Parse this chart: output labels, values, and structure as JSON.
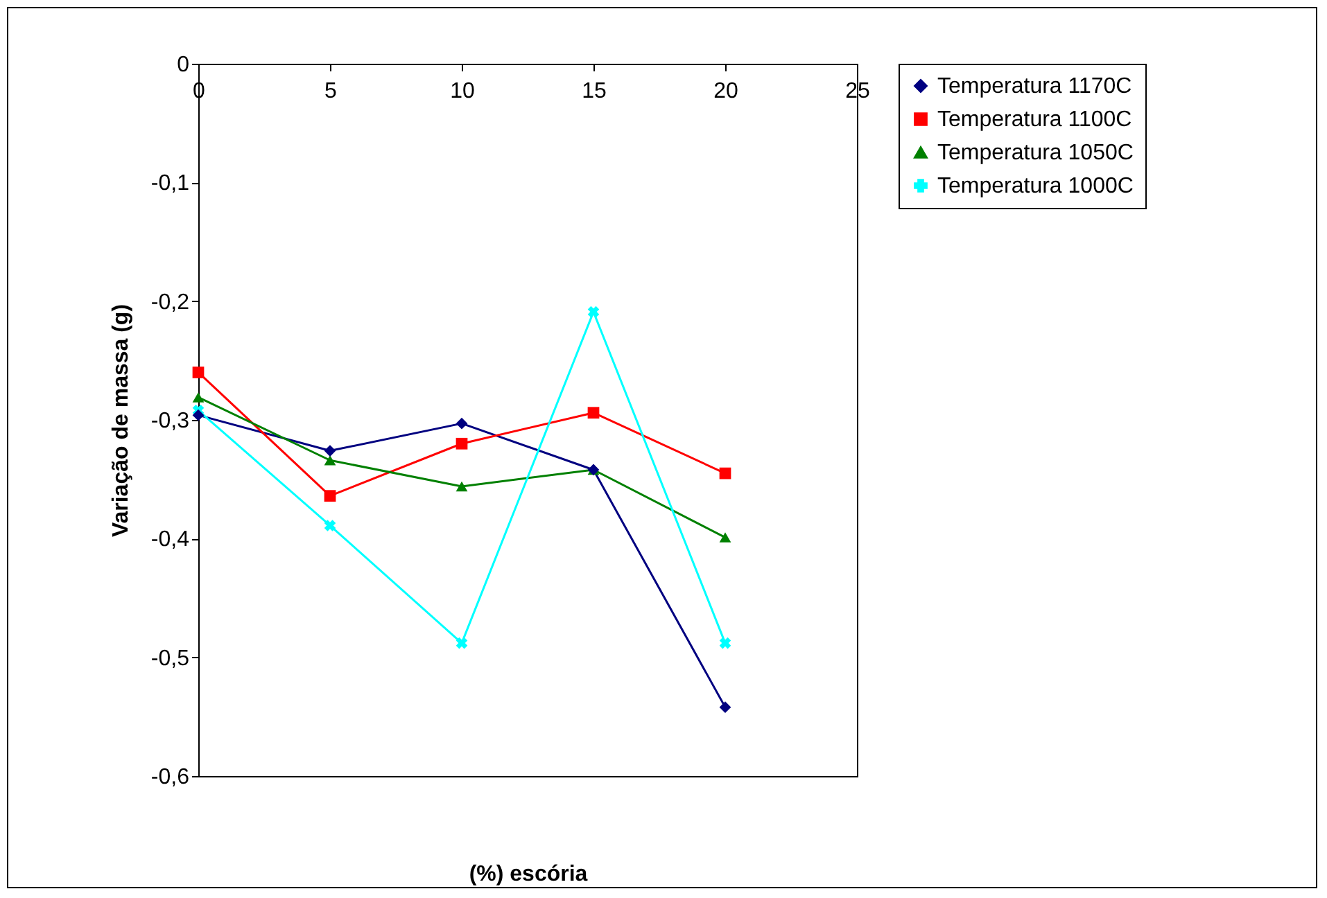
{
  "chart_data": {
    "type": "line",
    "xlabel": "(%) escória",
    "ylabel": "Variação de massa (g)",
    "x": [
      0,
      5,
      10,
      15,
      20
    ],
    "xlim": [
      0,
      25
    ],
    "xticks": [
      0,
      5,
      10,
      15,
      20,
      25
    ],
    "ylim": [
      -0.6,
      0
    ],
    "yticks": [
      {
        "value": 0,
        "label": "0"
      },
      {
        "value": -0.1,
        "label": "-0,1"
      },
      {
        "value": -0.2,
        "label": "-0,2"
      },
      {
        "value": -0.3,
        "label": "-0,3"
      },
      {
        "value": -0.4,
        "label": "-0,4"
      },
      {
        "value": -0.5,
        "label": "-0,5"
      },
      {
        "value": -0.6,
        "label": "-0,6"
      }
    ],
    "grid": false,
    "legend": "right",
    "series": [
      {
        "name": "Temperatura 1170C",
        "color": "#000080",
        "marker": "diamond",
        "values": [
          -0.296,
          -0.326,
          -0.303,
          -0.342,
          -0.542
        ]
      },
      {
        "name": "Temperatura 1100C",
        "color": "#ff0000",
        "marker": "square",
        "values": [
          -0.26,
          -0.364,
          -0.32,
          -0.294,
          -0.345
        ]
      },
      {
        "name": "Temperatura 1050C",
        "color": "#008000",
        "marker": "triangle",
        "values": [
          -0.281,
          -0.334,
          -0.356,
          -0.342,
          -0.399
        ]
      },
      {
        "name": "Temperatura 1000C",
        "color": "#00ffff",
        "marker": "cross",
        "values": [
          -0.292,
          -0.389,
          -0.488,
          -0.209,
          -0.488
        ]
      }
    ]
  }
}
